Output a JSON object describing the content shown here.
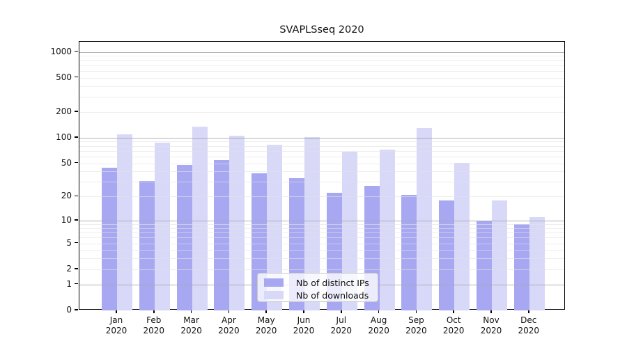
{
  "chart_data": {
    "type": "bar",
    "title": "SVAPLSseq 2020",
    "months": [
      "Jan",
      "Feb",
      "Mar",
      "Apr",
      "May",
      "Jun",
      "Jul",
      "Aug",
      "Sep",
      "Oct",
      "Nov",
      "Dec"
    ],
    "year": "2020",
    "series": [
      {
        "name": "Nb of distinct IPs",
        "color": "#a8a8f2",
        "values": [
          44,
          31,
          48,
          55,
          38,
          33,
          22,
          27,
          21,
          18,
          10,
          9
        ]
      },
      {
        "name": "Nb of downloads",
        "color": "#d8d8f8",
        "values": [
          110,
          88,
          135,
          106,
          83,
          102,
          68,
          73,
          130,
          51,
          18,
          11
        ]
      }
    ],
    "yscale": "log1p",
    "ylim": [
      0,
      1300
    ],
    "ytick_values": [
      0,
      1,
      2,
      5,
      10,
      20,
      50,
      100,
      200,
      500,
      1000
    ],
    "ytick_labels": [
      "0",
      "1",
      "2",
      "5",
      "10",
      "20",
      "50",
      "100",
      "200",
      "500",
      "1000"
    ],
    "major_grid_values": [
      1,
      10,
      100,
      1000
    ],
    "minor_grid_values": [
      2,
      3,
      4,
      5,
      6,
      7,
      8,
      9,
      20,
      30,
      40,
      50,
      60,
      70,
      80,
      90,
      200,
      300,
      400,
      500,
      600,
      700,
      800,
      900
    ],
    "grid": "horizontal major+minor, drawn over bars",
    "legend_position": "lower center",
    "colors": {
      "background": "#ffffff",
      "axis": "#000000",
      "major_grid": "#b0b0b0",
      "minor_grid": "#e6e6e6",
      "text": "#111111"
    }
  }
}
